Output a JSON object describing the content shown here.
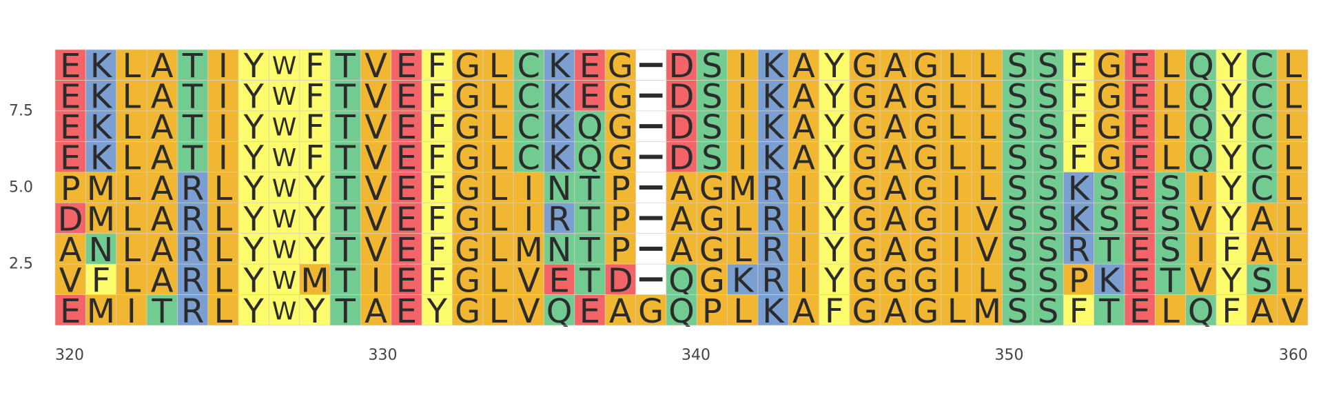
{
  "chart_data": {
    "type": "heatmap",
    "title": "",
    "xlabel": "",
    "ylabel": "",
    "x_start": 320,
    "xlim": [
      320,
      360
    ],
    "ylim": [
      0.5,
      9.5
    ],
    "x_ticks": [
      "320",
      "330",
      "340",
      "350",
      "360"
    ],
    "y_ticks": [
      "2.5",
      "5.0",
      "7.5"
    ],
    "sequences": [
      "EKLATIYWFTVEFGLCKEG-DSIKAYGAGLLSSFGELQYCL",
      "EKLATIYWFTVEFGLCKEG-DSIKAYGAGLLSSFGELQYCL",
      "EKLATIYWFTVEFGLCKQG-DSIKAYGAGLLSSFGELQYCL",
      "EKLATIYWFTVEFGLCKQG-DSIKAYGAGLLSSFGELQYCL",
      "PMLARLYWYTVEFGLINTP-AGMRIYGAGILSSKSESIYCL",
      "DMLARLYWYTVEFGLIRTP-AGLRIYGAGIVSSKSESVYAL",
      "ANLARLYWYTVEFGLMNTP-AGLRIYGAGIVSSRTESIFAL",
      "VFLARLYWMTIEFGLVETD-QGKRIYGGGILSSPKETVYSL",
      "EMITRLYWYTAEYGLVQEAGQPLKAFGAGLMSSFTELQFAV"
    ],
    "color_scheme": {
      "acidic": "#f36468",
      "basic": "#7a9fd0",
      "hydrophobic": "#f1b733",
      "aromatic": "#fdfc6c",
      "polar": "#72cb91",
      "gap": "#ffffff"
    },
    "residue_groups": {
      "acidic": "DE",
      "basic": "KRH",
      "hydrophobic": "AVLIMPG",
      "aromatic": "FYW",
      "polar": "STNQC"
    }
  }
}
